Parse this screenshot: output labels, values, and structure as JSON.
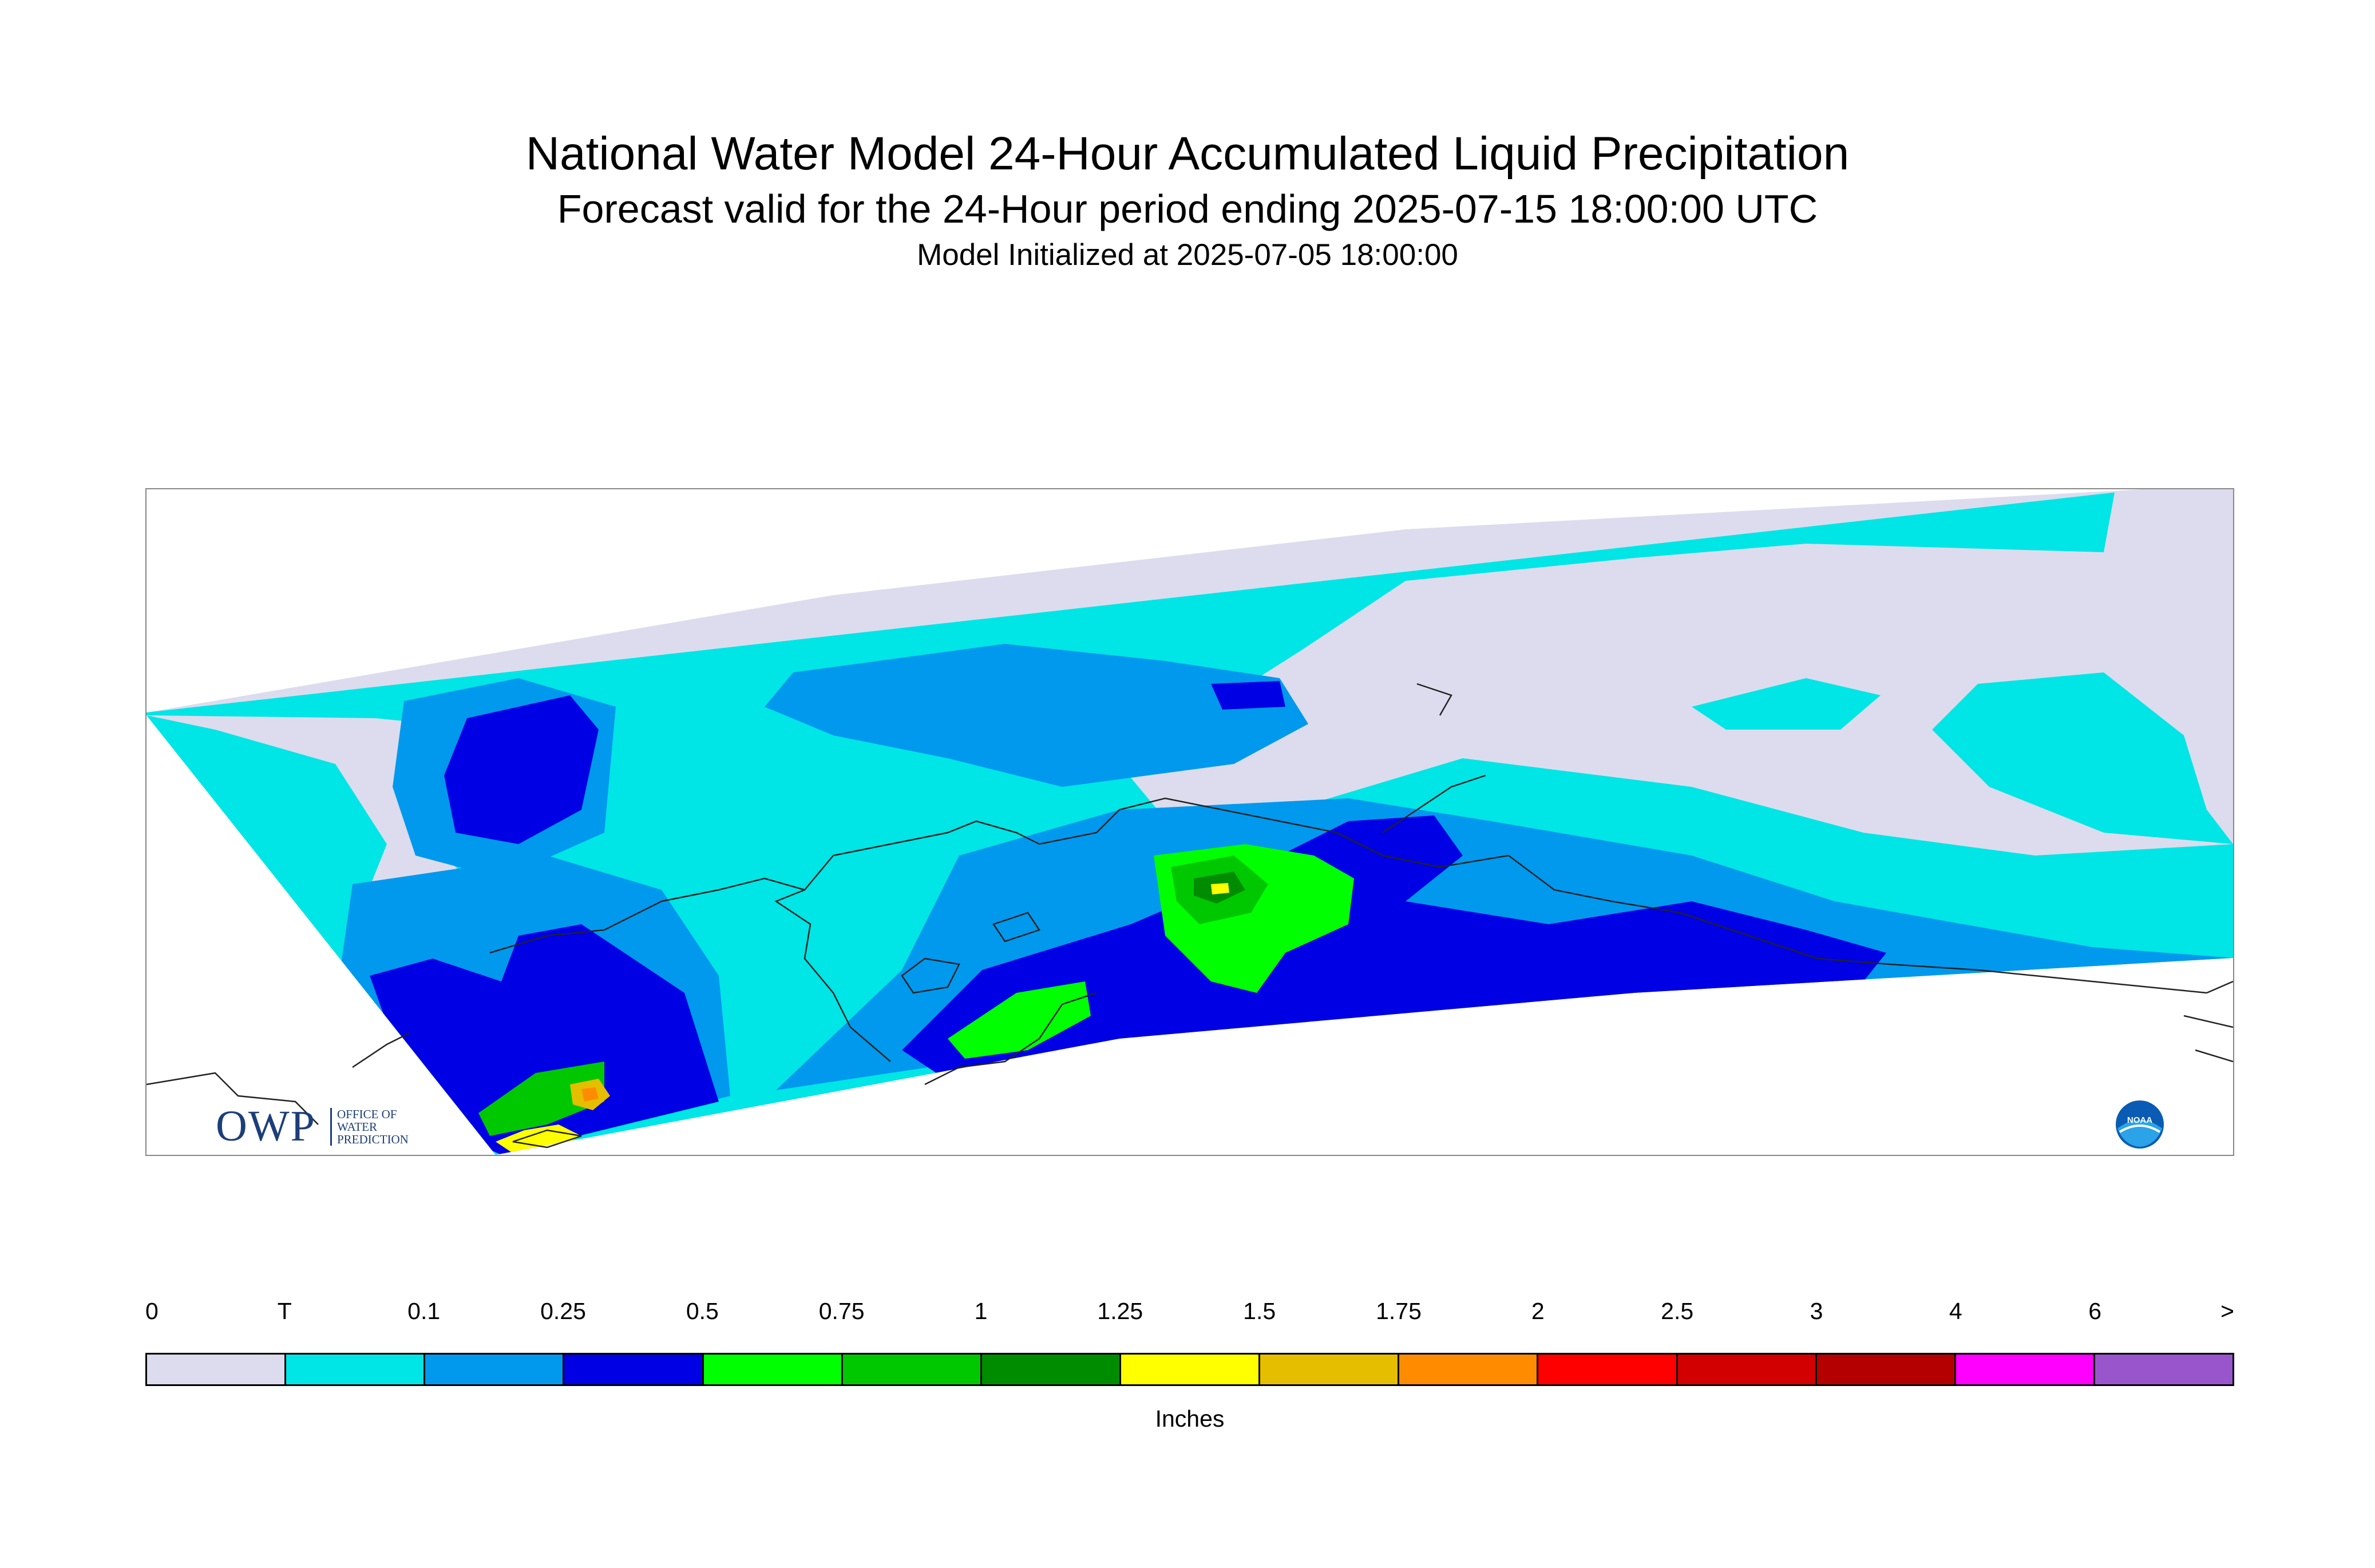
{
  "title": "National Water Model 24-Hour Accumulated Liquid Precipitation",
  "subtitle": "Forecast valid for the 24-Hour period ending 2025-07-15 18:00:00 UTC",
  "init_text": "Model Initialized at 2025-07-05 18:00:00",
  "logos": {
    "owp_main": "OWP",
    "owp_sub": "OFFICE OF WATER PREDICTION",
    "noaa": "NOAA"
  },
  "map_colors": {
    "zero": "#dcdcee",
    "trace": "#00e5e5",
    "light": "#0099ee",
    "moderate": "#0000e5",
    "heavy1": "#00ff00",
    "heavy2": "#00c800",
    "heavy3": "#008c00",
    "extreme1": "#ffff00",
    "extreme2": "#e5be00",
    "extreme3": "#ff8c00",
    "coast": "#222222"
  },
  "legend": {
    "units": "Inches",
    "ticks": [
      "0",
      "T",
      "0.1",
      "0.25",
      "0.5",
      "0.75",
      "1",
      "1.25",
      "1.5",
      "1.75",
      "2",
      "2.5",
      "3",
      "4",
      "6",
      ">"
    ],
    "colors": [
      "#dcdcee",
      "#00e5e5",
      "#0099ee",
      "#0000e5",
      "#00ff00",
      "#00c800",
      "#008c00",
      "#ffff00",
      "#e5be00",
      "#ff8c00",
      "#ff0000",
      "#d20000",
      "#b40000",
      "#ff00ff",
      "#9955cc"
    ]
  }
}
